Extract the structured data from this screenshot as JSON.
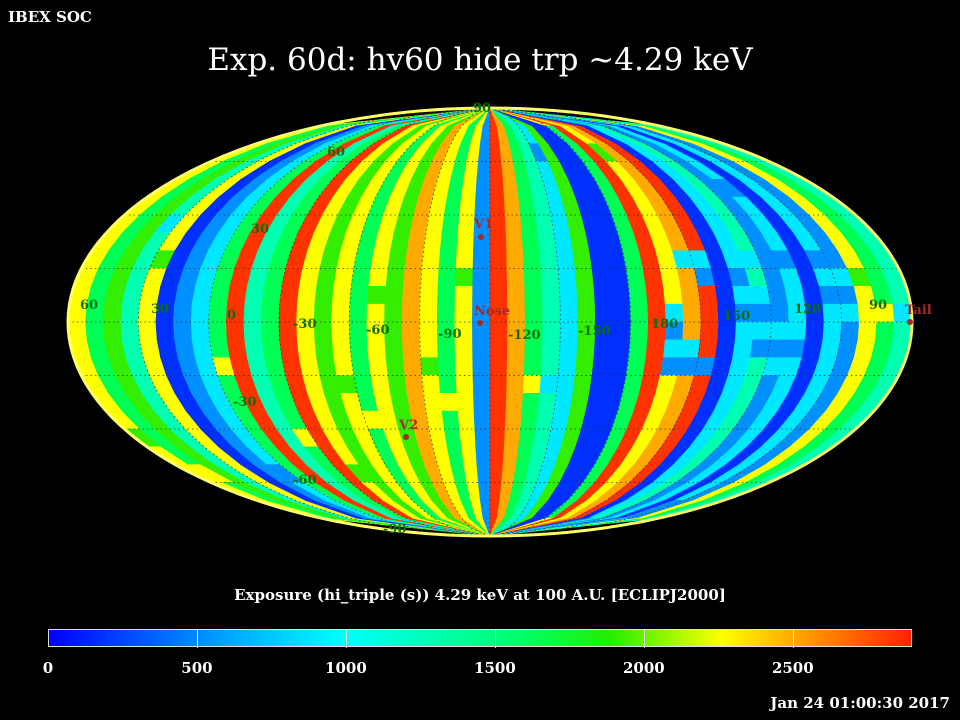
{
  "header": {
    "brand": "IBEX SOC",
    "title": "Exp.   60d: hv60 hide trp ~4.29 keV"
  },
  "map": {
    "projection": "mollweide",
    "longitude_labels": [
      "60",
      "30",
      "0",
      "-30",
      "-60",
      "-90",
      "-120",
      "-150",
      "180",
      "150",
      "120",
      "90"
    ],
    "latitude_labels": [
      "90",
      "60",
      "30",
      "-30",
      "-60",
      "-90"
    ],
    "markers": {
      "v1": "V1",
      "nose": "Nose",
      "v2": "V2",
      "tail": "Tail"
    },
    "marker_color": "#a52a2a"
  },
  "colorbar": {
    "label": "Exposure (hi_triple (s))  4.29 keV at 100 A.U. [ECLIPJ2000]",
    "min": 0,
    "max": 2900,
    "ticks": [
      "0",
      "500",
      "1000",
      "1500",
      "2000",
      "2500"
    ]
  },
  "footer": {
    "timestamp": "Jan 24 01:00:30 2017"
  }
}
